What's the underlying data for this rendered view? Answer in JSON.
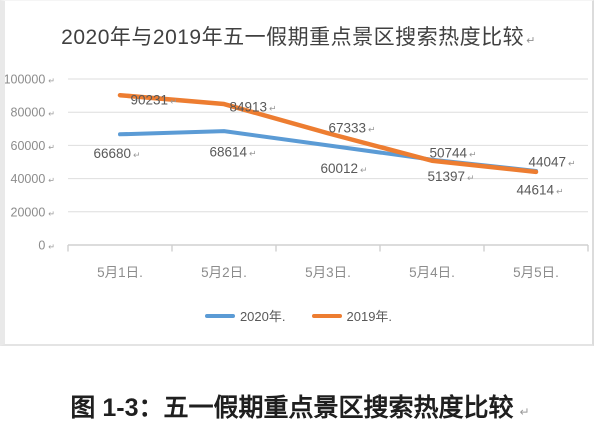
{
  "header": {
    "title": "2020年与2019年五一假期重点景区搜索热度比较",
    "title_mark": "↵"
  },
  "caption": {
    "text": "图 1-3：五一假期重点景区搜索热度比较",
    "mark": "↵"
  },
  "chart_data": {
    "type": "line",
    "title": "2020年与2019年五一假期重点景区搜索热度比较",
    "categories": [
      "5月1日",
      "5月2日",
      "5月3日",
      "5月4日",
      "5月5日"
    ],
    "category_label_suffix": ".",
    "series": [
      {
        "name": "2020年",
        "color": "#5B9BD5",
        "values": [
          66680,
          68614,
          60012,
          51397,
          44614
        ]
      },
      {
        "name": "2019年",
        "color": "#ED7D31",
        "values": [
          90231,
          84913,
          67333,
          50744,
          44047
        ]
      }
    ],
    "y_ticks": [
      0,
      20000,
      40000,
      60000,
      80000,
      100000
    ],
    "ylim": [
      0,
      100000
    ],
    "grid": true,
    "data_labels": true,
    "word_formatting_mark": "↵",
    "legend": {
      "position": "bottom",
      "items": [
        {
          "label": "2020年",
          "suffix": ".",
          "color": "#5B9BD5"
        },
        {
          "label": "2019年",
          "suffix": ".",
          "color": "#ED7D31"
        }
      ]
    }
  },
  "colors": {
    "series_2020": "#5B9BD5",
    "series_2019": "#ED7D31",
    "gridline": "#dedede",
    "axis_line": "#d0d0d0",
    "axis_text": "#8c8c8c",
    "data_label_text": "#595959",
    "mark_text": "#9a9a9a",
    "title_text": "#404040",
    "caption_text": "#1f1f1f"
  }
}
